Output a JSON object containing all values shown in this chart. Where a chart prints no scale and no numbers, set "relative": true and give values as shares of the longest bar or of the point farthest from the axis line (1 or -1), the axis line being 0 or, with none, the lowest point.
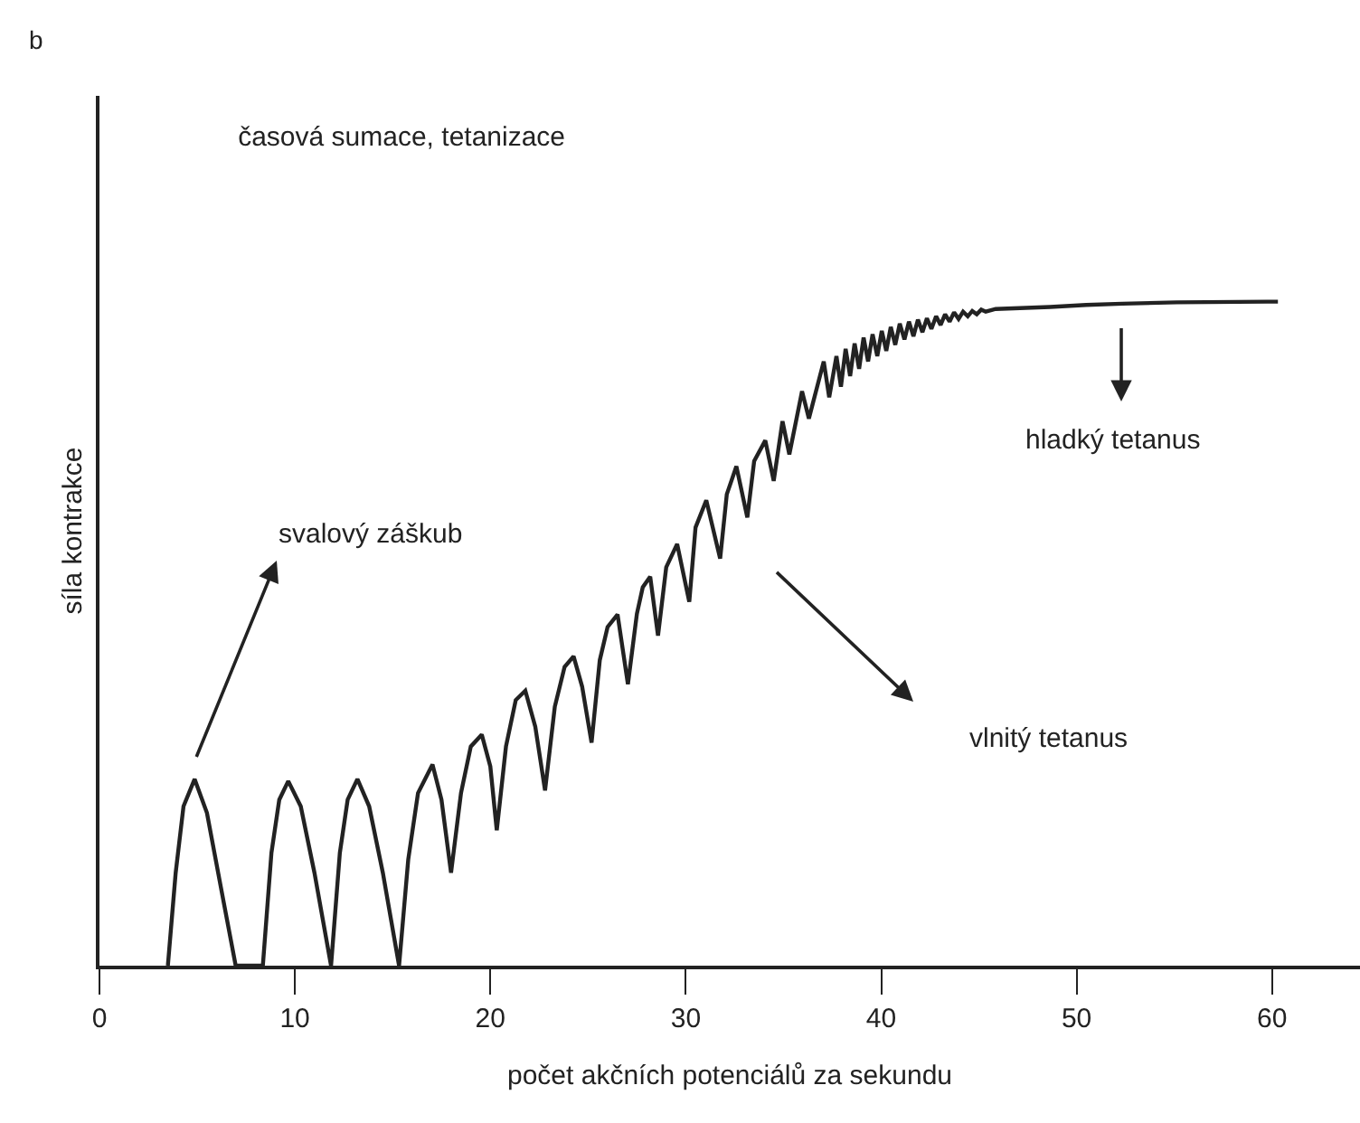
{
  "chart_data": {
    "type": "line",
    "title": "časová sumace, tetanizace",
    "xlabel": "počet akčních potenciálů za sekundu",
    "ylabel": "síla kontrakce",
    "relative": true,
    "xlim": [
      0,
      64.5
    ],
    "xticks": [
      0,
      10,
      20,
      30,
      40,
      50,
      60
    ],
    "tick_labels": "x",
    "marker": "none",
    "line_style": "solid",
    "annotations": [
      "b",
      "svalový záškub",
      "vlnitý tetanus",
      "hladký tetanus"
    ],
    "series": [
      {
        "color": "#222222",
        "x": [
          3.5,
          3.9,
          4.3,
          4.87,
          5.5,
          6.2,
          6.97,
          8.36,
          8.8,
          9.2,
          9.66,
          10.3,
          11.0,
          11.85,
          12.3,
          12.7,
          13.2,
          13.8,
          14.5,
          15.33,
          15.8,
          16.3,
          17.04,
          17.5,
          17.99,
          18.5,
          19.0,
          19.56,
          20.0,
          20.33,
          20.8,
          21.3,
          21.79,
          22.3,
          22.8,
          23.3,
          23.8,
          24.26,
          24.7,
          25.18,
          25.6,
          26.0,
          26.51,
          27.04,
          27.5,
          27.8,
          28.18,
          28.58,
          29.0,
          29.56,
          30.18,
          30.5,
          31.05,
          31.76,
          32.1,
          32.59,
          33.15,
          33.5,
          34.07,
          34.5,
          34.95,
          35.3,
          35.95,
          36.3,
          37.06,
          37.34,
          37.71,
          37.94,
          38.18,
          38.41,
          38.64,
          38.87,
          39.1,
          39.33,
          39.56,
          39.8,
          40.03,
          40.26,
          40.49,
          40.72,
          40.95,
          41.19,
          41.42,
          41.65,
          41.88,
          42.11,
          42.34,
          42.57,
          42.81,
          43.04,
          43.27,
          43.5,
          43.73,
          43.96,
          44.19,
          44.43,
          44.66,
          44.89,
          45.12,
          45.35,
          45.86,
          48.64,
          50.49,
          52.34,
          55.12,
          59.75,
          60.3
        ],
        "values": [
          0,
          0.14,
          0.24,
          0.281,
          0.23,
          0.12,
          0,
          0,
          0.17,
          0.25,
          0.278,
          0.24,
          0.14,
          0,
          0.17,
          0.25,
          0.281,
          0.24,
          0.14,
          0,
          0.16,
          0.26,
          0.303,
          0.25,
          0.14,
          0.26,
          0.33,
          0.348,
          0.3,
          0.204,
          0.33,
          0.4,
          0.414,
          0.36,
          0.264,
          0.39,
          0.45,
          0.466,
          0.42,
          0.336,
          0.46,
          0.51,
          0.529,
          0.424,
          0.53,
          0.57,
          0.586,
          0.497,
          0.6,
          0.635,
          0.548,
          0.66,
          0.701,
          0.613,
          0.71,
          0.752,
          0.675,
          0.76,
          0.791,
          0.73,
          0.82,
          0.77,
          0.865,
          0.824,
          0.91,
          0.856,
          0.918,
          0.872,
          0.929,
          0.888,
          0.937,
          0.899,
          0.946,
          0.91,
          0.951,
          0.918,
          0.956,
          0.926,
          0.962,
          0.935,
          0.967,
          0.943,
          0.97,
          0.948,
          0.973,
          0.954,
          0.975,
          0.959,
          0.978,
          0.965,
          0.981,
          0.97,
          0.984,
          0.974,
          0.985,
          0.978,
          0.986,
          0.981,
          0.988,
          0.985,
          0.989,
          0.992,
          0.995,
          0.997,
          0.999,
          1.0,
          1.0
        ]
      }
    ]
  }
}
